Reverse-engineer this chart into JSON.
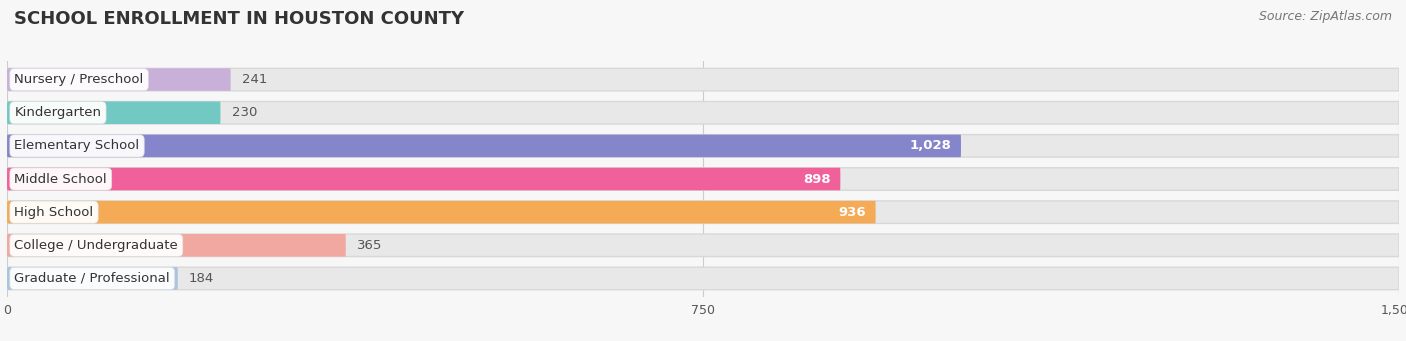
{
  "title": "SCHOOL ENROLLMENT IN HOUSTON COUNTY",
  "source": "Source: ZipAtlas.com",
  "categories": [
    "Nursery / Preschool",
    "Kindergarten",
    "Elementary School",
    "Middle School",
    "High School",
    "College / Undergraduate",
    "Graduate / Professional"
  ],
  "values": [
    241,
    230,
    1028,
    898,
    936,
    365,
    184
  ],
  "bar_colors": [
    "#c9b0d8",
    "#72c9c3",
    "#8585cc",
    "#f0609a",
    "#f5aa55",
    "#f0a8a0",
    "#aac4e0"
  ],
  "bar_bg_color": "#e8e8e8",
  "bar_bg_border": "#d8d8d8",
  "xlim": [
    0,
    1500
  ],
  "xticks": [
    0,
    750,
    1500
  ],
  "value_label_color_inside": "#ffffff",
  "value_label_color_outside": "#555555",
  "inside_threshold": 400,
  "title_fontsize": 13,
  "source_fontsize": 9,
  "label_fontsize": 9.5,
  "tick_fontsize": 9,
  "bar_height": 0.68,
  "background_color": "#f7f7f7",
  "grid_color": "#cccccc"
}
